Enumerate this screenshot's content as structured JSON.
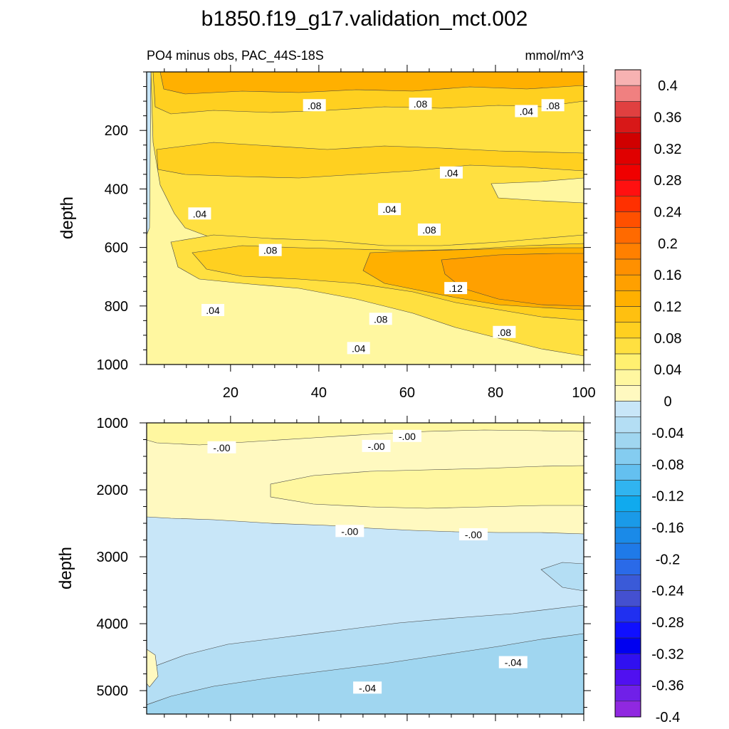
{
  "title": "b1850.f19_g17.validation_mct.002",
  "subtitle_left": "PO4 minus obs, PAC_44S-18S",
  "units": "mmol/m^3",
  "chart_data": [
    {
      "type": "heatmap",
      "subtype": "filled-contour",
      "ylabel": "depth",
      "xlim": [
        1,
        100
      ],
      "ylim": [
        1000,
        0
      ],
      "xticks": [
        20,
        40,
        60,
        80,
        100
      ],
      "yticks": [
        200,
        400,
        600,
        800,
        1000
      ],
      "contour_labels": [
        {
          "text": ".08",
          "x": 39,
          "y": 115
        },
        {
          "text": ".08",
          "x": 63,
          "y": 110
        },
        {
          "text": ".04",
          "x": 87,
          "y": 135
        },
        {
          "text": ".08",
          "x": 93,
          "y": 115
        },
        {
          "text": ".04",
          "x": 70,
          "y": 345
        },
        {
          "text": ".04",
          "x": 13,
          "y": 485
        },
        {
          "text": ".04",
          "x": 56,
          "y": 470
        },
        {
          "text": ".08",
          "x": 65,
          "y": 540
        },
        {
          "text": ".08",
          "x": 29,
          "y": 610
        },
        {
          "text": ".12",
          "x": 71,
          "y": 740
        },
        {
          "text": ".04",
          "x": 16,
          "y": 815
        },
        {
          "text": ".08",
          "x": 54,
          "y": 845
        },
        {
          "text": ".08",
          "x": 82,
          "y": 890
        },
        {
          "text": ".04",
          "x": 49,
          "y": 945
        }
      ]
    },
    {
      "type": "heatmap",
      "subtype": "filled-contour",
      "ylabel": "depth",
      "xlim": [
        1,
        100
      ],
      "ylim": [
        5350,
        1000
      ],
      "yticks": [
        1000,
        2000,
        3000,
        4000,
        5000
      ],
      "contour_labels": [
        {
          "text": "-.00",
          "x": 18,
          "y": 1370
        },
        {
          "text": "-.00",
          "x": 53,
          "y": 1350
        },
        {
          "text": "-.00",
          "x": 60,
          "y": 1200
        },
        {
          "text": "-.00",
          "x": 47,
          "y": 2620
        },
        {
          "text": "-.00",
          "x": 75,
          "y": 2670
        },
        {
          "text": "-.04",
          "x": 84,
          "y": 4580
        },
        {
          "text": "-.04",
          "x": 51,
          "y": 4960
        }
      ]
    }
  ],
  "colorbar": {
    "labels": [
      "0.4",
      "0.36",
      "0.32",
      "0.28",
      "0.24",
      "0.2",
      "0.16",
      "0.12",
      "0.08",
      "0.04",
      "0",
      "-0.04",
      "-0.08",
      "-0.12",
      "-0.16",
      "-0.2",
      "-0.24",
      "-0.28",
      "-0.32",
      "-0.36",
      "-0.4"
    ],
    "colors": [
      "#f7b2b2",
      "#f08080",
      "#e04040",
      "#d81818",
      "#d00000",
      "#e00000",
      "#f00000",
      "#ff1010",
      "#ff3000",
      "#ff5000",
      "#ff6a00",
      "#ff8000",
      "#ff9000",
      "#ffa000",
      "#ffb000",
      "#ffc010",
      "#ffd020",
      "#ffe040",
      "#fff070",
      "#fff7a0",
      "#fff9c0",
      "#c8e6f8",
      "#b4def4",
      "#a0d6f0",
      "#84ccf0",
      "#64c0f0",
      "#30b4f0",
      "#10aaee",
      "#1a9ae8",
      "#1a8ae8",
      "#1f7ae8",
      "#2a6ae8",
      "#3a5ad8",
      "#4450d0",
      "#2030f0",
      "#1010ff",
      "#0000f0",
      "#3010f0",
      "#5010f0",
      "#7020e8",
      "#9028e0"
    ]
  },
  "colors": {
    "pos_low": "#fff7a0",
    "pos_mid": "#ffd020",
    "pos_high": "#ffa000",
    "neg_low": "#c8e6f8",
    "neg_mid": "#a0d6f0"
  }
}
